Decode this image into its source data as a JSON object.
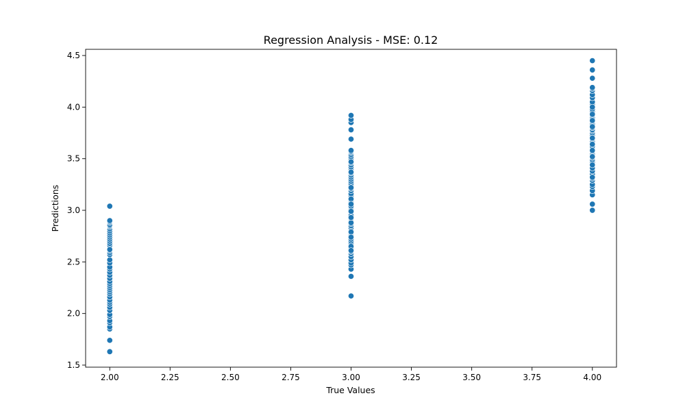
{
  "chart_data": {
    "type": "scatter",
    "title": "Regression Analysis - MSE: 0.12",
    "xlabel": "True Values",
    "ylabel": "Predictions",
    "xlim": [
      1.9,
      4.1
    ],
    "ylim": [
      1.48,
      4.56
    ],
    "xticks": [
      "2.00",
      "2.25",
      "2.50",
      "2.75",
      "3.00",
      "3.25",
      "3.50",
      "3.75",
      "4.00"
    ],
    "yticks": [
      "1.5",
      "2.0",
      "2.5",
      "3.0",
      "3.5",
      "4.0",
      "4.5"
    ],
    "grid": false,
    "legend": "none",
    "marker_color": "#1f77b4",
    "series": [
      {
        "x": [
          2,
          2,
          2,
          2,
          2,
          2,
          2,
          2,
          2,
          2,
          2,
          2,
          2,
          2,
          2,
          2,
          2,
          2,
          2,
          2,
          2,
          2,
          2,
          2,
          2,
          2,
          2,
          2,
          2,
          2,
          2,
          2,
          2,
          2,
          2,
          2,
          2,
          2,
          2,
          2,
          2,
          2,
          2,
          2,
          2,
          2,
          2,
          2,
          2,
          3,
          3,
          3,
          3,
          3,
          3,
          3,
          3,
          3,
          3,
          3,
          3,
          3,
          3,
          3,
          3,
          3,
          3,
          3,
          3,
          3,
          3,
          3,
          3,
          3,
          3,
          3,
          3,
          3,
          3,
          3,
          3,
          3,
          3,
          3,
          3,
          3,
          3,
          3,
          3,
          3,
          3,
          3,
          3,
          3,
          3,
          3,
          3,
          3,
          3,
          3,
          3,
          3,
          3,
          3,
          3,
          3,
          3,
          3,
          3,
          3,
          3,
          3,
          3,
          3,
          3,
          3,
          3,
          3,
          3,
          3,
          3,
          3,
          3,
          3,
          3,
          3,
          3,
          4,
          4,
          4,
          4,
          4,
          4,
          4,
          4,
          4,
          4,
          4,
          4,
          4,
          4,
          4,
          4,
          4,
          4,
          4,
          4,
          4,
          4,
          4,
          4,
          4,
          4,
          4,
          4,
          4,
          4,
          4,
          4,
          4,
          4,
          4,
          4,
          4,
          4,
          4,
          4,
          4,
          4,
          4,
          4,
          4,
          4,
          4,
          4,
          4,
          4,
          4,
          4,
          4,
          4,
          4,
          4,
          4
        ],
        "y": [
          1.63,
          1.74,
          1.85,
          1.87,
          1.91,
          1.93,
          1.97,
          1.99,
          2.03,
          2.06,
          2.09,
          2.11,
          2.13,
          2.16,
          2.19,
          2.21,
          2.23,
          2.25,
          2.27,
          2.29,
          2.31,
          2.34,
          2.37,
          2.4,
          2.43,
          2.45,
          2.49,
          2.52,
          2.57,
          2.59,
          2.61,
          2.63,
          2.66,
          2.68,
          2.7,
          2.72,
          2.74,
          2.76,
          2.78,
          2.8,
          2.82,
          2.84,
          2.85,
          2.86,
          2.88,
          2.89,
          2.9,
          3.04,
          2.62,
          2.17,
          2.36,
          2.43,
          2.47,
          2.49,
          2.52,
          2.55,
          2.58,
          2.6,
          2.63,
          2.66,
          2.68,
          2.7,
          2.72,
          2.74,
          2.76,
          2.78,
          2.8,
          2.83,
          2.85,
          2.87,
          2.89,
          2.91,
          2.92,
          2.94,
          2.96,
          2.98,
          3.0,
          3.01,
          3.03,
          3.05,
          3.07,
          3.08,
          3.1,
          3.12,
          3.14,
          3.16,
          3.19,
          3.21,
          3.24,
          3.26,
          3.28,
          3.3,
          3.32,
          3.34,
          3.36,
          3.38,
          3.4,
          3.42,
          3.44,
          3.46,
          3.48,
          3.5,
          3.52,
          3.54,
          3.56,
          3.57,
          3.58,
          3.69,
          3.78,
          3.85,
          3.88,
          3.92,
          2.98,
          2.88,
          2.95,
          3.11,
          3.04,
          2.79,
          2.65,
          3.22,
          3.37,
          2.93,
          3.06,
          2.99,
          2.61,
          2.74,
          3.47,
          3.0,
          3.06,
          3.15,
          3.19,
          3.23,
          3.25,
          3.29,
          3.31,
          3.35,
          3.38,
          3.41,
          3.47,
          3.49,
          3.51,
          3.55,
          3.57,
          3.6,
          3.62,
          3.65,
          3.67,
          3.69,
          3.71,
          3.73,
          3.75,
          3.77,
          3.78,
          3.8,
          3.82,
          3.84,
          3.86,
          3.88,
          3.9,
          3.92,
          3.94,
          3.96,
          3.98,
          4.01,
          4.03,
          4.05,
          4.09,
          4.12,
          4.16,
          4.18,
          4.19,
          4.28,
          4.36,
          4.45,
          3.7,
          3.81,
          3.58,
          3.93,
          3.44,
          3.32,
          3.87,
          3.64,
          4.0,
          3.52
        ]
      }
    ]
  }
}
